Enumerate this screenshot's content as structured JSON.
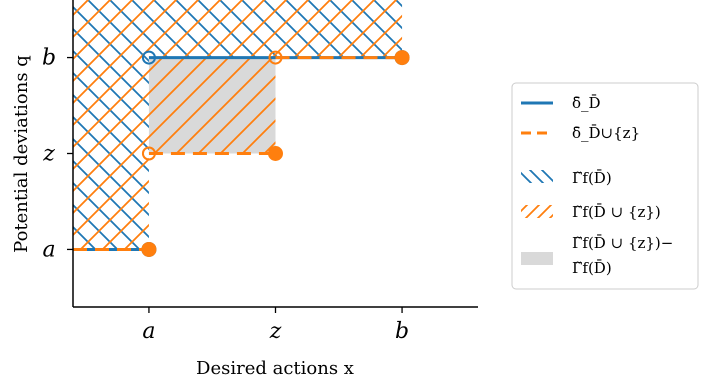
{
  "chart_data": {
    "type": "line",
    "xlabel": "Desired actions x",
    "ylabel": "Potential deviations q",
    "x_ticks": [
      {
        "label": "a",
        "value": 1
      },
      {
        "label": "z",
        "value": 2
      },
      {
        "label": "b",
        "value": 3
      }
    ],
    "y_ticks": [
      {
        "label": "a",
        "value": 1
      },
      {
        "label": "z",
        "value": 2
      },
      {
        "label": "b",
        "value": 3
      }
    ],
    "xlim": [
      0.4,
      3.6
    ],
    "ylim": [
      0.4,
      3.6
    ],
    "legend_position": "right",
    "series": [
      {
        "name": "δ̄_D̄",
        "color": "#1f77b4",
        "style": "solid",
        "segments": [
          {
            "points": [
              [
                0.4,
                1
              ],
              [
                1,
                1
              ]
            ],
            "open_end": null,
            "closed_end": [
              1,
              1
            ]
          },
          {
            "points": [
              [
                1,
                3
              ],
              [
                3,
                3
              ]
            ],
            "open_end": [
              1,
              3
            ],
            "closed_end": [
              3,
              3
            ]
          }
        ]
      },
      {
        "name": "δ̄_D̄∪{z}",
        "color": "#ff7f0e",
        "style": "dashed",
        "segments": [
          {
            "points": [
              [
                0.4,
                1
              ],
              [
                1,
                1
              ]
            ],
            "open_end": null,
            "closed_end": [
              1,
              1
            ]
          },
          {
            "points": [
              [
                1,
                2
              ],
              [
                2,
                2
              ]
            ],
            "open_end": [
              1,
              2
            ],
            "closed_end": [
              2,
              2
            ]
          },
          {
            "points": [
              [
                2,
                3
              ],
              [
                3,
                3
              ]
            ],
            "open_end": [
              2,
              3
            ],
            "closed_end": [
              3,
              3
            ]
          }
        ]
      }
    ],
    "regions": [
      {
        "name": "Γ̃_f(D̄)",
        "hatch": "backslash",
        "color": "#1f77b4",
        "polygon": [
          [
            0.4,
            1
          ],
          [
            1,
            1
          ],
          [
            1,
            3
          ],
          [
            3,
            3
          ],
          [
            3,
            3.6
          ],
          [
            0.4,
            3.6
          ]
        ]
      },
      {
        "name": "Γ̃_f(D̄ ∪ {z})",
        "hatch": "slash",
        "color": "#ff7f0e",
        "polygon": [
          [
            0.4,
            1
          ],
          [
            1,
            1
          ],
          [
            1,
            2
          ],
          [
            2,
            2
          ],
          [
            2,
            3
          ],
          [
            3,
            3
          ],
          [
            3,
            3.6
          ],
          [
            0.4,
            3.6
          ]
        ]
      },
      {
        "name": "Γ̃_f(D̄ ∪ {z})− Γ̃_f(D̄)",
        "fill": "#d9d9d9",
        "polygon": [
          [
            1,
            2
          ],
          [
            2,
            2
          ],
          [
            2,
            3
          ],
          [
            1,
            3
          ]
        ]
      }
    ]
  },
  "legend": {
    "items": [
      {
        "kind": "line",
        "color": "#1f77b4",
        "text": "δ̄_D̄"
      },
      {
        "kind": "dashed",
        "color": "#ff7f0e",
        "text": "δ̄_D̄∪{z}"
      },
      {
        "kind": "hatch-blue",
        "color": "#1f77b4",
        "text": "Γ̃f(D̄)"
      },
      {
        "kind": "hatch-orange",
        "color": "#ff7f0e",
        "text": "Γ̃f(D̄ ∪ {z})"
      },
      {
        "kind": "gray",
        "color": "#d9d9d9",
        "text_line1": "Γ̃f(D̄ ∪ {z})−",
        "text_line2": "Γ̃f(D̄)"
      }
    ]
  }
}
